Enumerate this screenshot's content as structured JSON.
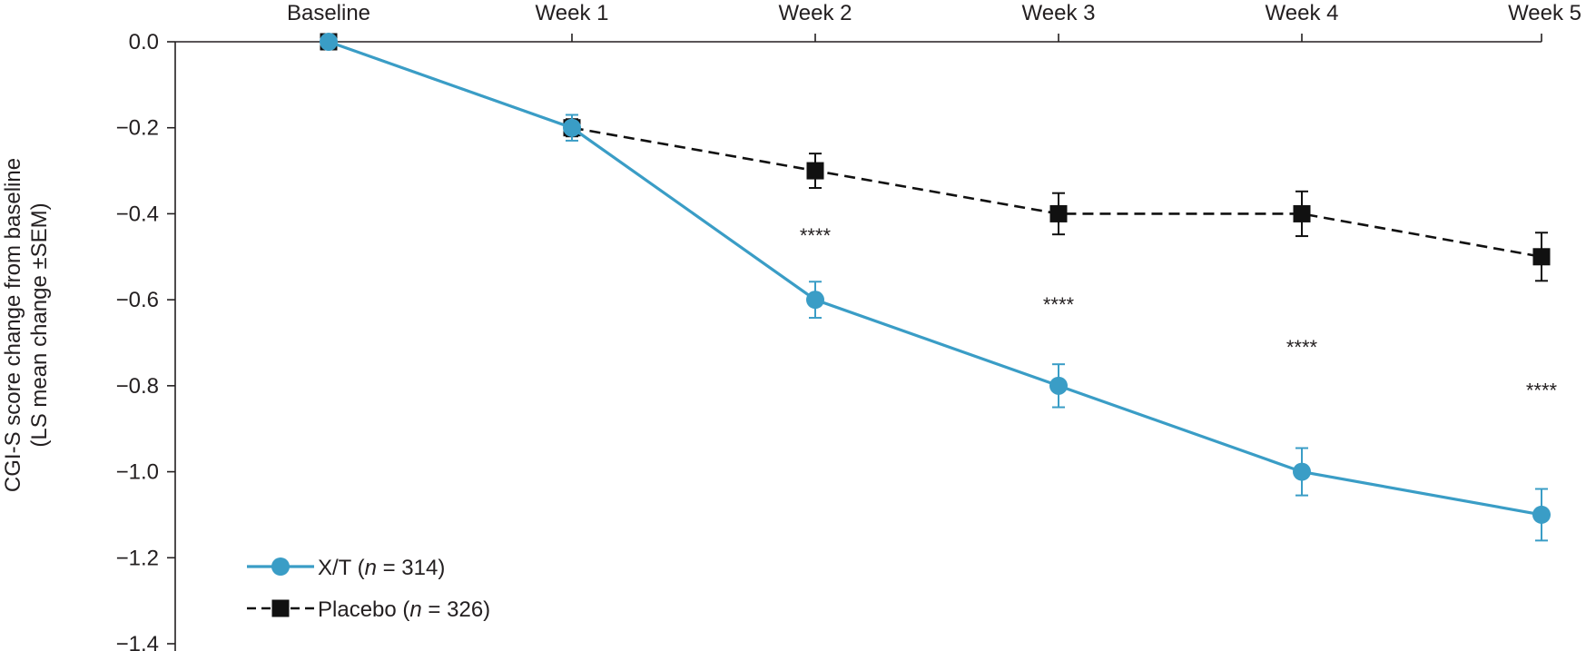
{
  "chart_data": {
    "type": "line",
    "categories": [
      "Baseline",
      "Week 1",
      "Week 2",
      "Week 3",
      "Week 4",
      "Week 5"
    ],
    "ylabel_lines": [
      "CGI-S score change from baseline",
      "(LS mean change ±SEM)"
    ],
    "ylim": [
      -1.4,
      0.0
    ],
    "yticks": [
      "0.0",
      "−0.2",
      "−0.4",
      "−0.6",
      "−0.8",
      "−1.0",
      "−1.2",
      "−1.4"
    ],
    "ytick_values": [
      0.0,
      -0.2,
      -0.4,
      -0.6,
      -0.8,
      -1.0,
      -1.2,
      -1.4
    ],
    "x_axis_position": "top",
    "grid": false,
    "legend_position": "bottom-left",
    "series": [
      {
        "name": "X/T",
        "name_suffix": " (",
        "n_italic": "n",
        "n_value": " = 314)",
        "color": "#3a9dc6",
        "marker": "circle",
        "line_style": "solid",
        "values": [
          0.0,
          -0.2,
          -0.6,
          -0.8,
          -1.0,
          -1.1
        ],
        "sem": [
          0.0,
          0.03,
          0.042,
          0.05,
          0.055,
          0.06
        ]
      },
      {
        "name": "Placebo",
        "name_suffix": " (",
        "n_italic": "n",
        "n_value": " = 326)",
        "color": "#111111",
        "marker": "square",
        "line_style": "dashed",
        "values": [
          0.0,
          -0.2,
          -0.3,
          -0.4,
          -0.4,
          -0.5
        ],
        "sem": [
          0.0,
          0.02,
          0.04,
          0.048,
          0.052,
          0.056
        ]
      }
    ],
    "annotations": [
      {
        "category": "Week 2",
        "text": "****",
        "y": -0.45
      },
      {
        "category": "Week 3",
        "text": "****",
        "y": -0.61
      },
      {
        "category": "Week 4",
        "text": "****",
        "y": -0.71
      },
      {
        "category": "Week 5",
        "text": "****",
        "y": -0.81
      }
    ]
  }
}
